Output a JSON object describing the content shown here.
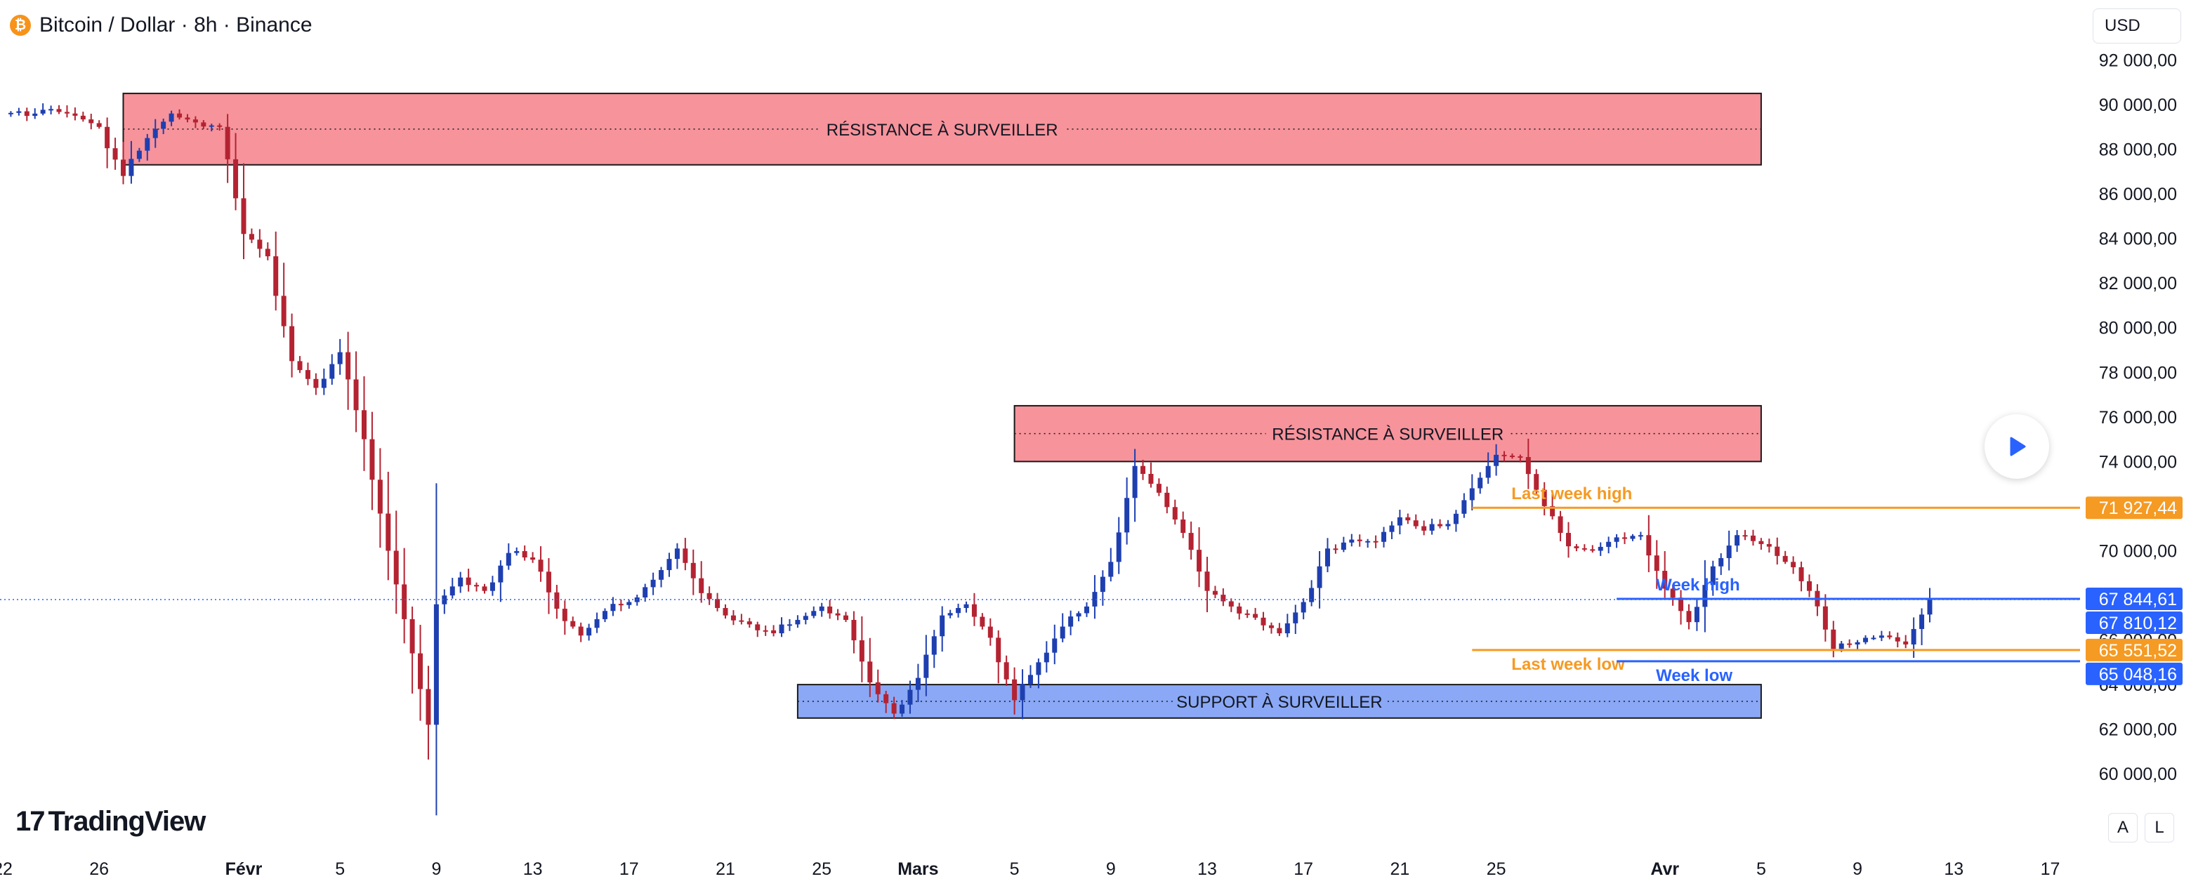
{
  "header": {
    "symbol_icon": "bitcoin-icon",
    "title": "Bitcoin / Dollar · 8h · Binance",
    "currency_button": "USD"
  },
  "branding": {
    "logo_mark": "17",
    "logo_text": "TradingView"
  },
  "scale_buttons": {
    "auto": "A",
    "log": "L"
  },
  "play_icon": "play-icon",
  "colors": {
    "up_candle": "#1e3fb0",
    "down_candle": "#b42332",
    "resistance_fill": "#f7939b",
    "support_fill": "#8aa8f5",
    "last_week": "#f59a23",
    "week": "#2962ff",
    "current_price_line": "#2962ff"
  },
  "chart_data": {
    "type": "candlestick",
    "title": "Bitcoin / Dollar · 8h · Binance",
    "timeframe": "8h",
    "x_start": "2025-01-22",
    "x_end": "2025-04-17",
    "ylim": [
      59000,
      92500
    ],
    "y_ticks": [
      {
        "value": 92000,
        "label": "92 000,00"
      },
      {
        "value": 90000,
        "label": "90 000,00"
      },
      {
        "value": 88000,
        "label": "88 000,00"
      },
      {
        "value": 86000,
        "label": "86 000,00"
      },
      {
        "value": 84000,
        "label": "84 000,00"
      },
      {
        "value": 82000,
        "label": "82 000,00"
      },
      {
        "value": 80000,
        "label": "80 000,00"
      },
      {
        "value": 78000,
        "label": "78 000,00"
      },
      {
        "value": 76000,
        "label": "76 000,00"
      },
      {
        "value": 74000,
        "label": "74 000,00"
      },
      {
        "value": 70000,
        "label": "70 000,00"
      },
      {
        "value": 66000,
        "label": "66 000,00"
      },
      {
        "value": 64000,
        "label": "64 000,00"
      },
      {
        "value": 62000,
        "label": "62 000,00"
      },
      {
        "value": 60000,
        "label": "60 000,00"
      }
    ],
    "x_ticks": [
      {
        "date": "2025-01-22",
        "label": "22"
      },
      {
        "date": "2025-01-26",
        "label": "26"
      },
      {
        "date": "2025-02-01",
        "label": "Févr"
      },
      {
        "date": "2025-02-05",
        "label": "5"
      },
      {
        "date": "2025-02-09",
        "label": "9"
      },
      {
        "date": "2025-02-13",
        "label": "13"
      },
      {
        "date": "2025-02-17",
        "label": "17"
      },
      {
        "date": "2025-02-21",
        "label": "21"
      },
      {
        "date": "2025-02-25",
        "label": "25"
      },
      {
        "date": "2025-03-01",
        "label": "Mars"
      },
      {
        "date": "2025-03-05",
        "label": "5"
      },
      {
        "date": "2025-03-09",
        "label": "9"
      },
      {
        "date": "2025-03-13",
        "label": "13"
      },
      {
        "date": "2025-03-17",
        "label": "17"
      },
      {
        "date": "2025-03-21",
        "label": "21"
      },
      {
        "date": "2025-03-25",
        "label": "25"
      },
      {
        "date": "2025-04-01",
        "label": "Avr"
      },
      {
        "date": "2025-04-05",
        "label": "5"
      },
      {
        "date": "2025-04-09",
        "label": "9"
      },
      {
        "date": "2025-04-13",
        "label": "13"
      },
      {
        "date": "2025-04-17",
        "label": "17"
      }
    ],
    "close_anchors": [
      {
        "date": "2025-01-22",
        "close": 89600
      },
      {
        "date": "2025-01-24",
        "close": 89800
      },
      {
        "date": "2025-01-25",
        "close": 89500
      },
      {
        "date": "2025-01-26",
        "close": 89000
      },
      {
        "date": "2025-01-27",
        "close": 86800
      },
      {
        "date": "2025-01-28",
        "close": 88500
      },
      {
        "date": "2025-01-29",
        "close": 89600
      },
      {
        "date": "2025-01-30",
        "close": 89200
      },
      {
        "date": "2025-01-31",
        "close": 89000
      },
      {
        "date": "2025-02-01",
        "close": 84200
      },
      {
        "date": "2025-02-02",
        "close": 83200
      },
      {
        "date": "2025-02-03",
        "close": 78500
      },
      {
        "date": "2025-02-04",
        "close": 77300
      },
      {
        "date": "2025-02-05",
        "close": 78900
      },
      {
        "date": "2025-02-06",
        "close": 75000
      },
      {
        "date": "2025-02-07",
        "close": 70000
      },
      {
        "date": "2025-02-08",
        "close": 65400
      },
      {
        "date": "2025-02-08T16:00",
        "close": 62200
      },
      {
        "date": "2025-02-09",
        "close": 67600
      },
      {
        "date": "2025-02-10",
        "close": 68800
      },
      {
        "date": "2025-02-11",
        "close": 68200
      },
      {
        "date": "2025-02-12",
        "close": 69900
      },
      {
        "date": "2025-02-13",
        "close": 69600
      },
      {
        "date": "2025-02-14",
        "close": 67400
      },
      {
        "date": "2025-02-15",
        "close": 66200
      },
      {
        "date": "2025-02-16",
        "close": 67300
      },
      {
        "date": "2025-02-17",
        "close": 67700
      },
      {
        "date": "2025-02-18",
        "close": 68700
      },
      {
        "date": "2025-02-19",
        "close": 70100
      },
      {
        "date": "2025-02-20",
        "close": 68100
      },
      {
        "date": "2025-02-21",
        "close": 67100
      },
      {
        "date": "2025-02-22",
        "close": 66700
      },
      {
        "date": "2025-02-23",
        "close": 66300
      },
      {
        "date": "2025-02-24",
        "close": 66900
      },
      {
        "date": "2025-02-25",
        "close": 67500
      },
      {
        "date": "2025-02-26",
        "close": 66900
      },
      {
        "date": "2025-02-27",
        "close": 64100
      },
      {
        "date": "2025-02-28",
        "close": 62700
      },
      {
        "date": "2025-03-01",
        "close": 64300
      },
      {
        "date": "2025-03-02",
        "close": 67100
      },
      {
        "date": "2025-03-03",
        "close": 67600
      },
      {
        "date": "2025-03-04",
        "close": 66100
      },
      {
        "date": "2025-03-05",
        "close": 63300
      },
      {
        "date": "2025-03-06",
        "close": 65000
      },
      {
        "date": "2025-03-07",
        "close": 66600
      },
      {
        "date": "2025-03-08",
        "close": 67500
      },
      {
        "date": "2025-03-09",
        "close": 69500
      },
      {
        "date": "2025-03-10",
        "close": 73800
      },
      {
        "date": "2025-03-11",
        "close": 72600
      },
      {
        "date": "2025-03-12",
        "close": 70800
      },
      {
        "date": "2025-03-13",
        "close": 68200
      },
      {
        "date": "2025-03-14",
        "close": 67500
      },
      {
        "date": "2025-03-15",
        "close": 67000
      },
      {
        "date": "2025-03-16",
        "close": 66300
      },
      {
        "date": "2025-03-17",
        "close": 67700
      },
      {
        "date": "2025-03-18",
        "close": 70100
      },
      {
        "date": "2025-03-19",
        "close": 70500
      },
      {
        "date": "2025-03-20",
        "close": 70400
      },
      {
        "date": "2025-03-21",
        "close": 71500
      },
      {
        "date": "2025-03-22",
        "close": 70900
      },
      {
        "date": "2025-03-23",
        "close": 71200
      },
      {
        "date": "2025-03-24",
        "close": 72800
      },
      {
        "date": "2025-03-25",
        "close": 74300
      },
      {
        "date": "2025-03-26",
        "close": 74200
      },
      {
        "date": "2025-03-27",
        "close": 72000
      },
      {
        "date": "2025-03-28",
        "close": 70200
      },
      {
        "date": "2025-03-29",
        "close": 70000
      },
      {
        "date": "2025-03-30",
        "close": 70600
      },
      {
        "date": "2025-03-31",
        "close": 70700
      },
      {
        "date": "2025-04-01",
        "close": 68300
      },
      {
        "date": "2025-04-02",
        "close": 66800
      },
      {
        "date": "2025-04-03",
        "close": 69300
      },
      {
        "date": "2025-04-04",
        "close": 70700
      },
      {
        "date": "2025-04-05",
        "close": 70300
      },
      {
        "date": "2025-04-06",
        "close": 69500
      },
      {
        "date": "2025-04-07",
        "close": 68200
      },
      {
        "date": "2025-04-08",
        "close": 65600
      },
      {
        "date": "2025-04-09",
        "close": 65900
      },
      {
        "date": "2025-04-10",
        "close": 66200
      },
      {
        "date": "2025-04-11",
        "close": 65800
      },
      {
        "date": "2025-04-12",
        "close": 67810
      }
    ],
    "zones": [
      {
        "label": "RÉSISTANCE À SURVEILLER",
        "kind": "resistance",
        "x0": "2025-01-27",
        "x1": "2025-04-05",
        "y_low": 87300,
        "y_high": 90500
      },
      {
        "label": "RÉSISTANCE À SURVEILLER",
        "kind": "resistance",
        "x0": "2025-03-05",
        "x1": "2025-04-05",
        "y_low": 74000,
        "y_high": 76500
      },
      {
        "label": "SUPPORT À SURVEILLER",
        "kind": "support",
        "x0": "2025-02-24",
        "x1": "2025-04-05",
        "y_low": 62500,
        "y_high": 64000
      }
    ],
    "levels": [
      {
        "label": "Last week high",
        "value": 71927.44,
        "value_label": "71 927,44",
        "color": "#f59a23",
        "x0": "2025-03-24"
      },
      {
        "label": "Week high",
        "value": 67844.61,
        "value_label": "67 844,61",
        "color": "#2962ff",
        "x0": "2025-03-30"
      },
      {
        "label": "Last week low",
        "value": 65551.52,
        "value_label": "65 551,52",
        "color": "#f59a23",
        "x0": "2025-03-24"
      },
      {
        "label": "Week low",
        "value": 65048.16,
        "value_label": "65 048,16",
        "color": "#2962ff",
        "x0": "2025-03-30"
      }
    ],
    "current_price": {
      "value": 67810.12,
      "label": "67 810,12"
    }
  }
}
